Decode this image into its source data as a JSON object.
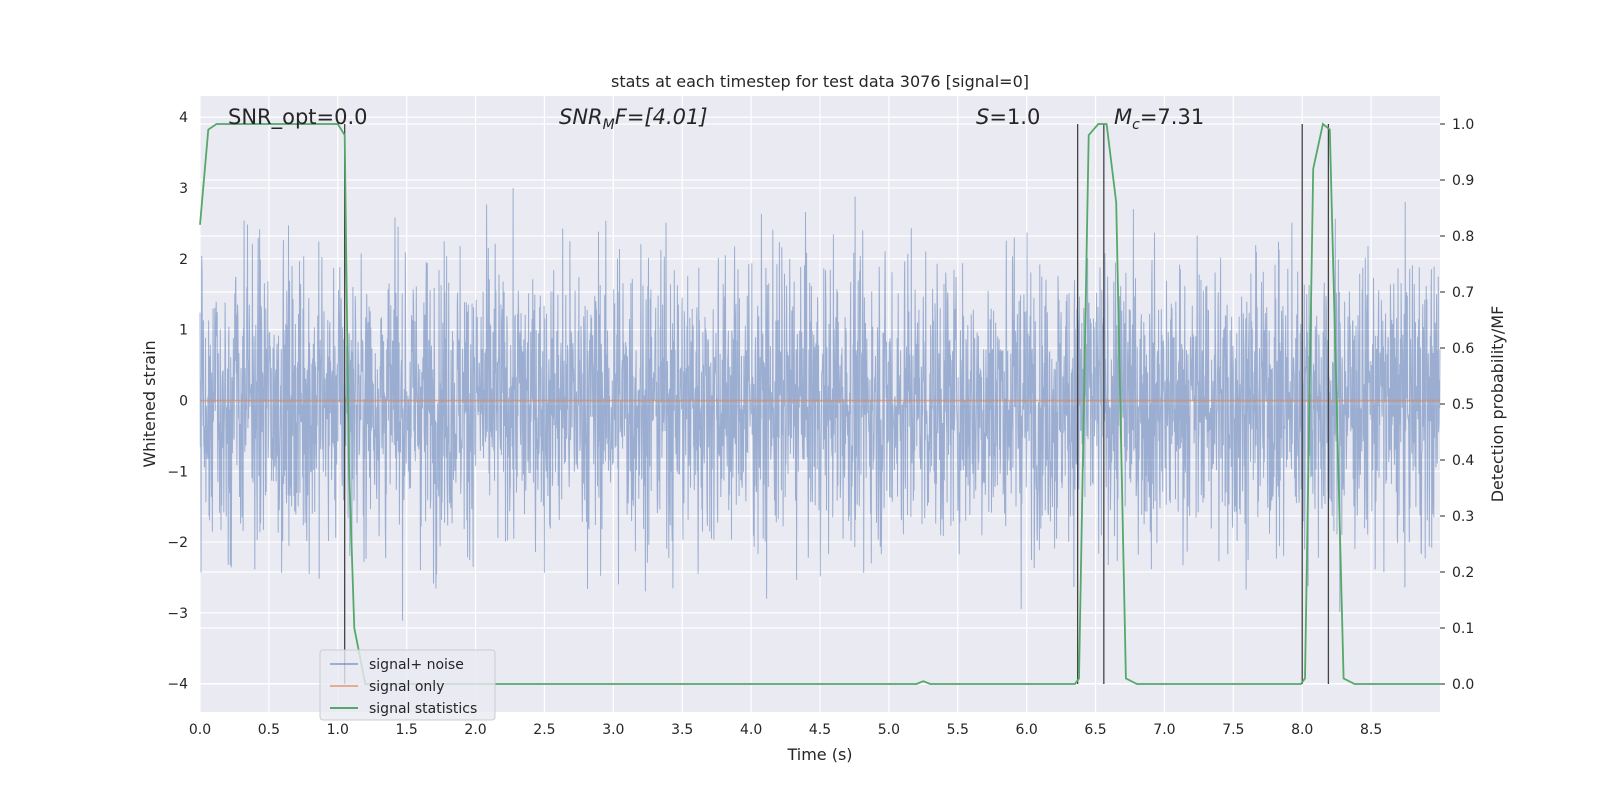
{
  "chart_data": {
    "type": "line",
    "title": "stats at each timestep for test data 3076 [signal=0]",
    "xlabel": "Time (s)",
    "ylabel": "Whitened strain",
    "y2label": "Detection probability/MF",
    "xlim": [
      0.0,
      9.0
    ],
    "ylim": [
      -4.4,
      4.3
    ],
    "y2lim": [
      -0.05,
      1.05
    ],
    "xticks": [
      0.0,
      0.5,
      1.0,
      1.5,
      2.0,
      2.5,
      3.0,
      3.5,
      4.0,
      4.5,
      5.0,
      5.5,
      6.0,
      6.5,
      7.0,
      7.5,
      8.0,
      8.5
    ],
    "xtick_labels": [
      "0.0",
      "0.5",
      "1.0",
      "1.5",
      "2.0",
      "2.5",
      "3.0",
      "3.5",
      "4.0",
      "4.5",
      "5.0",
      "5.5",
      "6.0",
      "6.5",
      "7.0",
      "7.5",
      "8.0",
      "8.5"
    ],
    "yticks": [
      -4,
      -3,
      -2,
      -1,
      0,
      1,
      2,
      3,
      4
    ],
    "ytick_labels": [
      "−4",
      "−3",
      "−2",
      "−1",
      "0",
      "1",
      "2",
      "3",
      "4"
    ],
    "y2ticks": [
      0.0,
      0.1,
      0.2,
      0.3,
      0.4,
      0.5,
      0.6,
      0.7,
      0.8,
      0.9,
      1.0
    ],
    "y2tick_labels": [
      "0.0",
      "0.1",
      "0.2",
      "0.3",
      "0.4",
      "0.5",
      "0.6",
      "0.7",
      "0.8",
      "0.9",
      "1.0"
    ],
    "grid": true,
    "legend_position": "lower-left",
    "colors": {
      "noise": "#4c72b0",
      "signal": "#dd8452",
      "stats": "#55a868",
      "vlines": "#444444",
      "background": "#eaeaf2",
      "grid": "#ffffff"
    },
    "series": [
      {
        "name": "signal+ noise",
        "axis": "left",
        "style": "noise",
        "approx_amplitude": 4.0
      },
      {
        "name": "signal only",
        "axis": "left",
        "x": [
          0.0,
          9.0
        ],
        "values": [
          0.0,
          0.0
        ]
      },
      {
        "name": "signal statistics",
        "axis": "right",
        "x": [
          0.0,
          0.06,
          0.12,
          0.2,
          0.5,
          1.0,
          1.05,
          1.08,
          1.12,
          1.2,
          1.3,
          2.0,
          3.0,
          4.0,
          5.0,
          5.2,
          5.25,
          5.3,
          6.0,
          6.35,
          6.38,
          6.45,
          6.52,
          6.58,
          6.65,
          6.72,
          6.8,
          7.5,
          7.99,
          8.02,
          8.08,
          8.15,
          8.2,
          8.3,
          8.38,
          9.0
        ],
        "values": [
          0.82,
          0.99,
          1.0,
          1.0,
          1.0,
          1.0,
          0.98,
          0.4,
          0.1,
          0.0,
          0.0,
          0.0,
          0.0,
          0.0,
          0.0,
          0.0,
          0.005,
          0.0,
          0.0,
          0.0,
          0.01,
          0.98,
          1.0,
          1.0,
          0.86,
          0.01,
          0.0,
          0.0,
          0.0,
          0.01,
          0.92,
          1.0,
          0.99,
          0.01,
          0.0,
          0.0
        ]
      }
    ],
    "vlines_y2": [
      {
        "x": 1.05,
        "y2": [
          0.0,
          1.0
        ]
      },
      {
        "x": 6.37,
        "y2": [
          0.0,
          1.0
        ]
      },
      {
        "x": 6.56,
        "y2": [
          0.0,
          1.0
        ]
      },
      {
        "x": 8.0,
        "y2": [
          0.0,
          1.0
        ]
      },
      {
        "x": 8.19,
        "y2": [
          0.0,
          1.0
        ]
      }
    ],
    "annotations": {
      "snr_opt": "SNR_opt=0.0",
      "snr_mf_sym": "SNR",
      "snr_mf_sub": "M",
      "snr_mf_rest": "F=[4.01]",
      "s_sym": "S",
      "s_rest": "=1.0",
      "mc_sym": "M",
      "mc_sub": "c",
      "mc_rest": "=7.31"
    }
  }
}
